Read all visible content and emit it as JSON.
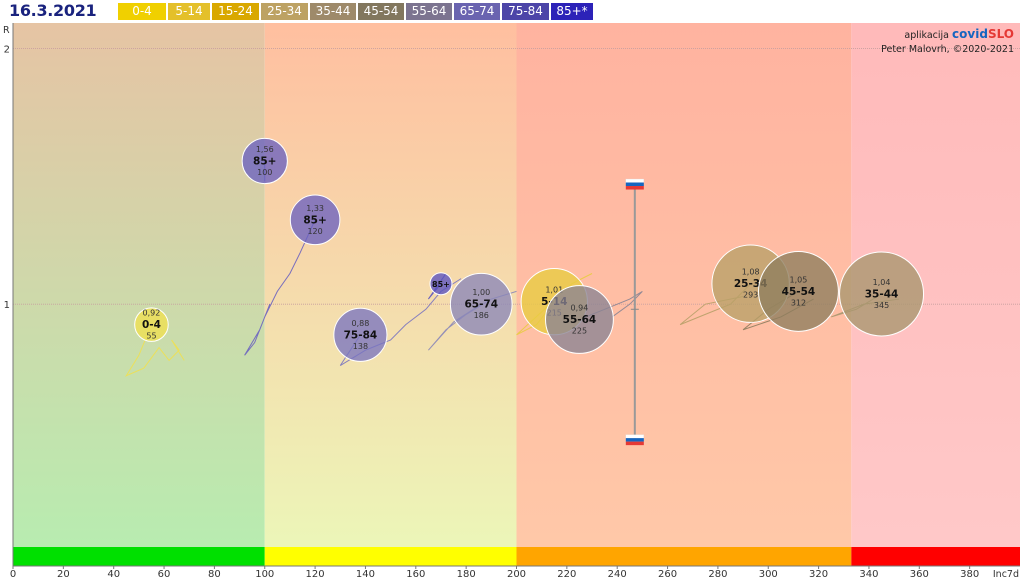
{
  "header": {
    "date": "16.3.2021",
    "age_groups": [
      {
        "label": "0-4",
        "color": "#f0d000"
      },
      {
        "label": "5-14",
        "color": "#e4c02a"
      },
      {
        "label": "15-24",
        "color": "#d9a800"
      },
      {
        "label": "25-34",
        "color": "#bda263"
      },
      {
        "label": "35-44",
        "color": "#9e8a6a"
      },
      {
        "label": "45-54",
        "color": "#82775e"
      },
      {
        "label": "55-64",
        "color": "#7c7490"
      },
      {
        "label": "65-74",
        "color": "#6a64b0"
      },
      {
        "label": "75-84",
        "color": "#4c45a8"
      },
      {
        "label": "85+*",
        "color": "#2c22b8"
      }
    ]
  },
  "app": {
    "prefix": "aplikacija",
    "brand1": "covid",
    "brand2": "SLO",
    "author": "Peter Malovrh, ©2020-2021"
  },
  "chart_data": {
    "type": "scatter",
    "xlabel": "Inc7d",
    "ylabel": "R",
    "xlim": [
      0,
      400
    ],
    "ylim": [
      0.05,
      2.1
    ],
    "xticks": [
      0,
      20,
      40,
      60,
      80,
      100,
      120,
      140,
      160,
      180,
      200,
      220,
      240,
      260,
      280,
      300,
      320,
      340,
      360,
      380
    ],
    "yticks": [
      1,
      2
    ],
    "zones": [
      {
        "x0": 0,
        "x1": 100,
        "color": "#00e000"
      },
      {
        "x0": 100,
        "x1": 200,
        "color": "#ffff00"
      },
      {
        "x0": 200,
        "x1": 333,
        "color": "#ffa500"
      },
      {
        "x0": 333,
        "x1": 400,
        "color": "#ff0000"
      }
    ],
    "points": [
      {
        "name": "0-4",
        "x": 55,
        "y": 0.92,
        "r_label": "0,92",
        "inc_label": "55",
        "color": "#f0e050",
        "trail": [
          [
            55,
            0.92
          ],
          [
            50,
            0.8
          ],
          [
            45,
            0.72
          ],
          [
            52,
            0.75
          ],
          [
            58,
            0.83
          ],
          [
            62,
            0.78
          ],
          [
            66,
            0.82
          ],
          [
            63,
            0.86
          ],
          [
            68,
            0.78
          ]
        ]
      },
      {
        "name": "5-14",
        "x": 215,
        "y": 1.01,
        "r_label": "1,01",
        "inc_label": "215",
        "color": "#e8cc40",
        "trail": [
          [
            215,
            1.01
          ],
          [
            208,
            0.92
          ],
          [
            200,
            0.88
          ],
          [
            210,
            0.97
          ],
          [
            222,
            1.08
          ],
          [
            230,
            1.12
          ]
        ]
      },
      {
        "name": "25-34",
        "x": 293,
        "y": 1.08,
        "r_label": "1,08",
        "inc_label": "293",
        "color": "#b8a068",
        "trail": [
          [
            293,
            1.08
          ],
          [
            285,
            1.0
          ],
          [
            275,
            0.96
          ],
          [
            265,
            0.92
          ],
          [
            275,
            1.0
          ],
          [
            290,
            1.03
          ]
        ]
      },
      {
        "name": "45-54",
        "x": 312,
        "y": 1.05,
        "r_label": "1,05",
        "inc_label": "312",
        "color": "#8e7d5e",
        "trail": [
          [
            312,
            1.05
          ],
          [
            300,
            0.98
          ],
          [
            290,
            0.9
          ],
          [
            305,
            0.95
          ],
          [
            318,
            1.02
          ]
        ]
      },
      {
        "name": "35-44",
        "x": 345,
        "y": 1.04,
        "r_label": "1,04",
        "inc_label": "345",
        "color": "#a8966e",
        "trail": [
          [
            345,
            1.04
          ],
          [
            335,
            0.98
          ],
          [
            325,
            0.95
          ],
          [
            338,
            1.0
          ],
          [
            352,
            1.02
          ]
        ]
      },
      {
        "name": "55-64",
        "x": 225,
        "y": 0.94,
        "r_label": "0,94",
        "inc_label": "225",
        "color": "#8a8494",
        "trail": [
          [
            225,
            0.94
          ],
          [
            235,
            0.98
          ],
          [
            245,
            1.02
          ],
          [
            250,
            1.05
          ],
          [
            245,
            1.0
          ],
          [
            238,
            0.95
          ]
        ]
      },
      {
        "name": "65-74",
        "x": 186,
        "y": 1.0,
        "r_label": "1,00",
        "inc_label": "186",
        "color": "#8a86b8",
        "trail": [
          [
            186,
            1.0
          ],
          [
            175,
            0.93
          ],
          [
            165,
            0.82
          ],
          [
            172,
            0.9
          ],
          [
            180,
            0.96
          ],
          [
            190,
            1.02
          ],
          [
            200,
            1.05
          ]
        ]
      },
      {
        "name": "75-84",
        "x": 138,
        "y": 0.88,
        "r_label": "0,88",
        "inc_label": "138",
        "color": "#7a74c0",
        "trail": [
          [
            138,
            0.88
          ],
          [
            130,
            0.76
          ],
          [
            140,
            0.82
          ],
          [
            150,
            0.86
          ],
          [
            156,
            0.92
          ],
          [
            164,
            0.98
          ],
          [
            170,
            1.05
          ],
          [
            178,
            1.1
          ]
        ]
      },
      {
        "name": "85+",
        "x": 170,
        "y": 1.08,
        "r_label": "",
        "inc_label": "",
        "color": "#5a52c0",
        "trail": [
          [
            170,
            1.08
          ],
          [
            165,
            1.02
          ],
          [
            172,
            1.12
          ]
        ]
      },
      {
        "name": "85+",
        "x": 120,
        "y": 1.33,
        "r_label": "1,33",
        "inc_label": "120",
        "color": "#6a62c0",
        "trail": [
          [
            120,
            1.33
          ],
          [
            114,
            1.2
          ],
          [
            110,
            1.12
          ],
          [
            105,
            1.05
          ],
          [
            100,
            0.95
          ],
          [
            96,
            0.85
          ],
          [
            92,
            0.8
          ],
          [
            98,
            0.9
          ],
          [
            102,
            1.0
          ]
        ]
      },
      {
        "name": "85+",
        "x": 100,
        "y": 1.56,
        "r_label": "1,56",
        "inc_label": "100",
        "color": "#6a62c0",
        "trail": [
          [
            100,
            1.56
          ],
          [
            100,
            1.48
          ]
        ]
      }
    ],
    "overall": {
      "x": 247,
      "y_low": 0.47,
      "y_high": 1.47,
      "y_mid": 0.98
    }
  }
}
